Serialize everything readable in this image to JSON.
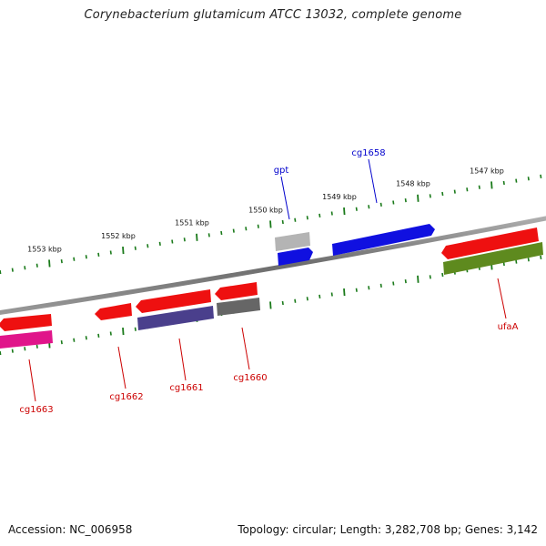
{
  "title": "Corynebacterium glutamicum ATCC 13032, complete genome",
  "footer": {
    "accession": "Accession: NC_006958",
    "topology": "Topology: circular; Length: 3,282,708 bp; Genes: 3,142"
  },
  "ticks": [
    {
      "label": "1553 kbp",
      "kbp": 1553
    },
    {
      "label": "1552 kbp",
      "kbp": 1552
    },
    {
      "label": "1551 kbp",
      "kbp": 1551
    },
    {
      "label": "1550 kbp",
      "kbp": 1550
    },
    {
      "label": "1549 kbp",
      "kbp": 1549
    },
    {
      "label": "1548 kbp",
      "kbp": 1548
    },
    {
      "label": "1547 kbp",
      "kbp": 1547
    }
  ],
  "genes": [
    {
      "name": "gpt",
      "color": "#0000cc"
    },
    {
      "name": "cg1658",
      "color": "#0000cc"
    },
    {
      "name": "ufaA",
      "color": "#cc0000"
    },
    {
      "name": "cg1660",
      "color": "#cc0000"
    },
    {
      "name": "cg1661",
      "color": "#cc0000"
    },
    {
      "name": "cg1662",
      "color": "#cc0000"
    },
    {
      "name": "cg1663",
      "color": "#cc0000"
    }
  ],
  "colors": {
    "backbone": "#7a7a7a",
    "tick": "#1a7a1a",
    "forward_gene": "#0a0ae6",
    "reverse_gene": "#ee0f0f",
    "forward_light": "#a8a8a8",
    "reverse_olive": "#5e8a1e",
    "reverse_purple": "#4a3f8c",
    "reverse_gray": "#666666",
    "reverse_pink": "#e0158a"
  }
}
